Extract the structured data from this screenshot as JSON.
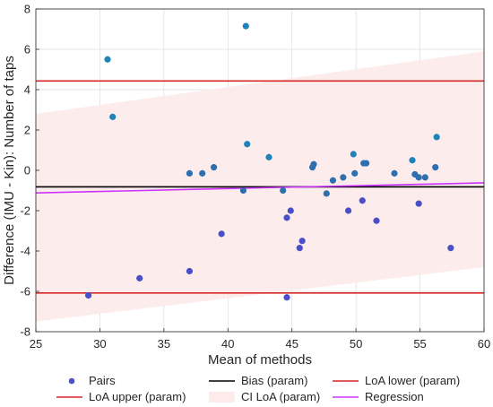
{
  "chart_data": {
    "type": "scatter",
    "title": "",
    "xlabel": "Mean of methods",
    "ylabel": "Difference (IMU - Kin): Number of taps",
    "xlim": [
      25,
      60
    ],
    "ylim": [
      -8,
      8
    ],
    "xticks": [
      "25",
      "30",
      "35",
      "40",
      "45",
      "50",
      "55",
      "60"
    ],
    "yticks": [
      "8",
      "6",
      "4",
      "2",
      "0",
      "-2",
      "-4",
      "-6",
      "-8"
    ],
    "grid": true,
    "legend_position": "bottom",
    "series": [
      {
        "name": "Pairs",
        "kind": "scatter",
        "color": "#2e6fb0",
        "points": [
          [
            29.1,
            -6.2
          ],
          [
            30.6,
            5.5
          ],
          [
            31.0,
            2.65
          ],
          [
            33.1,
            -5.35
          ],
          [
            37.0,
            -0.15
          ],
          [
            37.0,
            -5.0
          ],
          [
            38.0,
            -0.15
          ],
          [
            38.9,
            0.15
          ],
          [
            39.5,
            -3.15
          ],
          [
            41.2,
            -1.0
          ],
          [
            41.5,
            1.3
          ],
          [
            41.4,
            7.15
          ],
          [
            43.2,
            0.65
          ],
          [
            44.3,
            -1.0
          ],
          [
            44.6,
            -2.35
          ],
          [
            44.9,
            -2.0
          ],
          [
            44.6,
            -6.3
          ],
          [
            45.6,
            -3.85
          ],
          [
            45.8,
            -3.5
          ],
          [
            46.6,
            0.15
          ],
          [
            46.7,
            0.3
          ],
          [
            47.7,
            -1.15
          ],
          [
            48.2,
            -0.5
          ],
          [
            49.0,
            -0.35
          ],
          [
            49.4,
            -2.0
          ],
          [
            49.8,
            0.8
          ],
          [
            49.9,
            -0.15
          ],
          [
            50.5,
            -1.5
          ],
          [
            50.6,
            0.35
          ],
          [
            50.8,
            0.35
          ],
          [
            51.6,
            -2.5
          ],
          [
            53.0,
            -0.15
          ],
          [
            54.4,
            0.5
          ],
          [
            54.6,
            -0.2
          ],
          [
            54.9,
            -0.35
          ],
          [
            54.9,
            -1.65
          ],
          [
            55.4,
            -0.35
          ],
          [
            56.2,
            0.15
          ],
          [
            56.3,
            1.65
          ],
          [
            57.4,
            -3.85
          ]
        ]
      },
      {
        "name": "Bias (param)",
        "kind": "line",
        "color": "#000000",
        "y": -0.82
      },
      {
        "name": "LoA lower (param)",
        "kind": "line",
        "color": "#d62728",
        "y": -6.08
      },
      {
        "name": "LoA upper (param)",
        "kind": "line",
        "color": "#d62728",
        "y": 4.43
      },
      {
        "name": "CI LoA (param)",
        "kind": "band",
        "color": "#fdeaea",
        "upper": [
          [
            25,
            2.8
          ],
          [
            60,
            5.9
          ]
        ],
        "lower": [
          [
            25,
            -7.5
          ],
          [
            60,
            -4.8
          ]
        ]
      },
      {
        "name": "Regression",
        "kind": "line",
        "color": "#cc33ff",
        "points": [
          [
            25,
            -1.12
          ],
          [
            60,
            -0.62
          ]
        ]
      }
    ]
  }
}
